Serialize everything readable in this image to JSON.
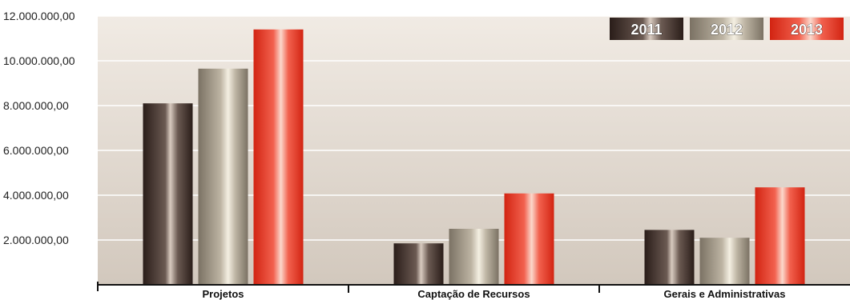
{
  "chart_data": {
    "type": "bar",
    "title": "",
    "xlabel": "",
    "ylabel": "",
    "categories": [
      "Projetos",
      "Captação de Recursos",
      "Gerais e Administrativas"
    ],
    "series": [
      {
        "name": "2011",
        "values": [
          8100000,
          1850000,
          2450000
        ],
        "color": "#3f2f2a"
      },
      {
        "name": "2012",
        "values": [
          9650000,
          2500000,
          2100000
        ],
        "color": "#a9a08f"
      },
      {
        "name": "2013",
        "values": [
          11400000,
          4080000,
          4350000
        ],
        "color": "#ec3b2a"
      }
    ],
    "ylim": [
      0,
      12000000
    ],
    "yticks": [
      2000000,
      4000000,
      6000000,
      8000000,
      10000000,
      12000000
    ],
    "ytick_labels": [
      "2.000.000,00",
      "4.000.000,00",
      "6.000.000,00",
      "8.000.000,00",
      "10.000.000,00",
      "12.000.000,00"
    ],
    "grid": true,
    "legend": {
      "position": "top-right",
      "entries": [
        "2011",
        "2012",
        "2013"
      ]
    },
    "background_color": "#d4cbc1"
  }
}
